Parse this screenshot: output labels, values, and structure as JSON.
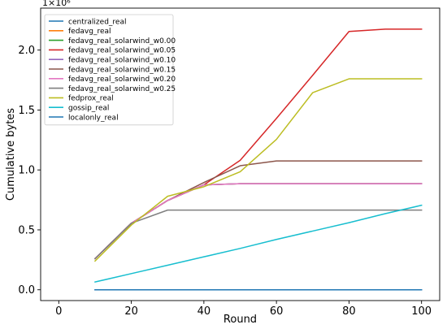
{
  "chart_data": {
    "type": "line",
    "title": "",
    "xlabel": "Round",
    "ylabel": "Cumulative bytes",
    "y_offset_text": "1×10⁶",
    "xlim": [
      -5,
      105
    ],
    "ylim": [
      -0.09,
      2.35
    ],
    "x_ticks": [
      0,
      20,
      40,
      60,
      80,
      100
    ],
    "x_tick_labels": [
      "0",
      "20",
      "40",
      "60",
      "80",
      "100"
    ],
    "y_ticks": [
      0.0,
      0.5,
      1.0,
      1.5,
      2.0
    ],
    "y_tick_labels": [
      "0.0",
      "0.5",
      "1.0",
      "1.5",
      "2.0"
    ],
    "grid": false,
    "legend_position": "top-left",
    "x": [
      10,
      20,
      30,
      40,
      50,
      60,
      70,
      80,
      90,
      100
    ],
    "series": [
      {
        "name": "centralized_real",
        "color": "#1f77b4",
        "values": [
          0,
          0,
          0,
          0,
          0,
          0,
          0,
          0,
          0,
          0
        ]
      },
      {
        "name": "fedavg_real",
        "color": "#ff7f0e",
        "values": [
          0.26,
          0.555,
          0.745,
          0.875,
          0.885,
          0.885,
          0.885,
          0.885,
          0.885,
          0.885
        ]
      },
      {
        "name": "fedavg_real_solarwind_w0.00",
        "color": "#2ca02c",
        "values": [
          0.26,
          0.555,
          0.745,
          0.875,
          0.885,
          0.885,
          0.885,
          0.885,
          0.885,
          0.885
        ]
      },
      {
        "name": "fedavg_real_solarwind_w0.05",
        "color": "#d62728",
        "values": [
          0.26,
          0.555,
          0.745,
          0.875,
          1.08,
          1.43,
          1.79,
          2.155,
          2.175,
          2.175
        ]
      },
      {
        "name": "fedavg_real_solarwind_w0.10",
        "color": "#9467bd",
        "values": [
          0.26,
          0.555,
          0.745,
          0.875,
          0.885,
          0.885,
          0.885,
          0.885,
          0.885,
          0.885
        ]
      },
      {
        "name": "fedavg_real_solarwind_w0.15",
        "color": "#8c564b",
        "values": [
          0.26,
          0.555,
          0.745,
          0.895,
          1.035,
          1.075,
          1.075,
          1.075,
          1.075,
          1.075
        ]
      },
      {
        "name": "fedavg_real_solarwind_w0.20",
        "color": "#e377c2",
        "values": [
          0.26,
          0.555,
          0.745,
          0.875,
          0.885,
          0.885,
          0.885,
          0.885,
          0.885,
          0.885
        ]
      },
      {
        "name": "fedavg_real_solarwind_w0.25",
        "color": "#7f7f7f",
        "values": [
          0.26,
          0.555,
          0.665,
          0.665,
          0.665,
          0.665,
          0.665,
          0.665,
          0.665,
          0.665
        ]
      },
      {
        "name": "fedprox_real",
        "color": "#bcbd22",
        "values": [
          0.24,
          0.54,
          0.78,
          0.86,
          0.985,
          1.255,
          1.645,
          1.76,
          1.76,
          1.76
        ]
      },
      {
        "name": "gossip_real",
        "color": "#17becf",
        "values": [
          0.065,
          0.135,
          0.205,
          0.275,
          0.345,
          0.42,
          0.49,
          0.56,
          0.635,
          0.705
        ]
      },
      {
        "name": "localonly_real",
        "color": "#1f77b4",
        "values": [
          0,
          0,
          0,
          0,
          0,
          0,
          0,
          0,
          0,
          0
        ]
      }
    ]
  }
}
